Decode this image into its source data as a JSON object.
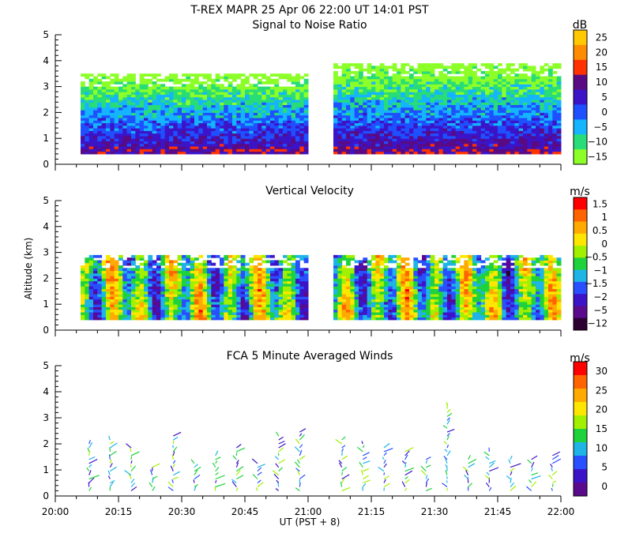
{
  "title": "T-REX  MAPR 25 Apr 06  22:00 UT  14:01  PST",
  "xlabel": "UT  (PST + 8)",
  "ylabel": "Altitude (km)",
  "x_ticks": [
    "20:00",
    "20:15",
    "20:30",
    "20:45",
    "21:00",
    "21:15",
    "21:30",
    "21:45",
    "22:00"
  ],
  "y_ticks": [
    "0",
    "1",
    "2",
    "3",
    "4",
    "5"
  ],
  "chart_data": [
    {
      "type": "heatmap",
      "title": "Signal to Noise Ratio",
      "xlim": [
        "20:00",
        "22:00"
      ],
      "ylim": [
        0,
        5
      ],
      "units": "dB",
      "colorbar_labels": [
        "25",
        "20",
        "15",
        "10",
        "5",
        "0",
        "−5",
        "−10",
        "−15"
      ],
      "colorbar_colors": [
        "#ffc800",
        "#ff8c00",
        "#ff3200",
        "#5a0a82",
        "#3c14c8",
        "#1e50ff",
        "#14b4ff",
        "#28dc78",
        "#8cff28"
      ],
      "data_gap": [
        "21:00",
        "21:06"
      ],
      "data_extent": [
        "20:06",
        "22:00"
      ],
      "top_km_before_gap": 3.5,
      "top_km_after_gap": 3.9
    },
    {
      "type": "heatmap",
      "title": "Vertical Velocity",
      "xlim": [
        "20:00",
        "22:00"
      ],
      "ylim": [
        0,
        5
      ],
      "units": "m/s",
      "colorbar_labels": [
        "1.5",
        "1",
        "0.5",
        "0",
        "−0.5",
        "−1",
        "−1.5",
        "−2",
        "−5",
        "−12"
      ],
      "colorbar_colors": [
        "#ff0000",
        "#ff6400",
        "#ffaa00",
        "#ffe600",
        "#a0f000",
        "#1ed23c",
        "#1eb4e6",
        "#2850ff",
        "#3c14c8",
        "#5a0a8c",
        "#2d0032"
      ],
      "data_gap": [
        "21:00",
        "21:06"
      ],
      "data_extent": [
        "20:06",
        "22:00"
      ],
      "top_km_before_gap": 2.9,
      "top_km_after_gap": 2.9
    },
    {
      "type": "scatter",
      "title": "FCA 5 Minute Averaged Winds",
      "xlim": [
        "20:00",
        "22:00"
      ],
      "ylim": [
        0,
        5
      ],
      "units": "m/s",
      "colorbar_labels": [
        "30",
        "25",
        "20",
        "15",
        "10",
        "5",
        "0"
      ],
      "colorbar_colors": [
        "#ff0000",
        "#ff6400",
        "#ffaa00",
        "#ffe600",
        "#a0f000",
        "#1ed23c",
        "#1eb4e6",
        "#2850ff",
        "#3c14c8",
        "#5a0a8c"
      ],
      "wind_profile_times": [
        "20:08",
        "20:13",
        "20:18",
        "20:23",
        "20:28",
        "20:33",
        "20:38",
        "20:43",
        "20:48",
        "20:53",
        "20:58",
        "21:08",
        "21:13",
        "21:18",
        "21:23",
        "21:28",
        "21:33",
        "21:38",
        "21:43",
        "21:48",
        "21:53",
        "21:58"
      ],
      "wind_profile_tops_km": [
        2.1,
        2.2,
        1.9,
        1.2,
        2.4,
        1.3,
        1.6,
        1.9,
        1.3,
        2.4,
        2.5,
        2.2,
        2.1,
        1.9,
        1.7,
        1.5,
        3.6,
        1.4,
        1.7,
        1.4,
        1.4,
        1.6
      ]
    }
  ]
}
